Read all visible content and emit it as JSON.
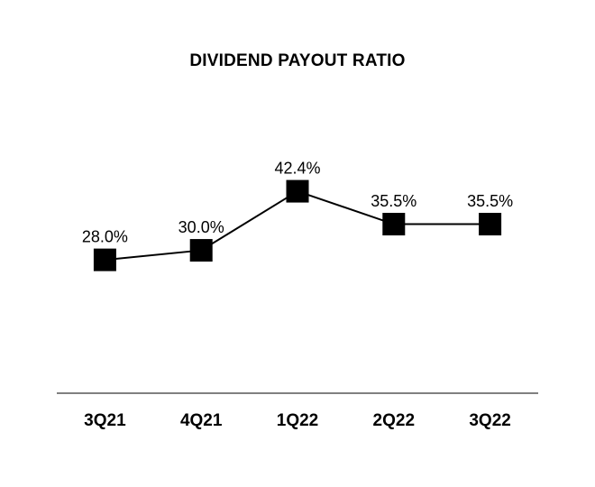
{
  "chart_data": {
    "type": "line",
    "title": "DIVIDEND PAYOUT RATIO",
    "categories": [
      "3Q21",
      "4Q21",
      "1Q22",
      "2Q22",
      "3Q22"
    ],
    "values": [
      28.0,
      30.0,
      42.4,
      35.5,
      35.5
    ],
    "point_labels": [
      "28.0%",
      "30.0%",
      "42.4%",
      "35.5%",
      "35.5%"
    ],
    "xlabel": "",
    "ylabel": "",
    "ylim": [
      0,
      64
    ],
    "grid": false,
    "legend": "none",
    "marker_shape": "square",
    "colors": {
      "line": "#000000",
      "marker": "#000000",
      "text": "#000000",
      "axis_line": "#808080",
      "background": "#ffffff"
    }
  }
}
